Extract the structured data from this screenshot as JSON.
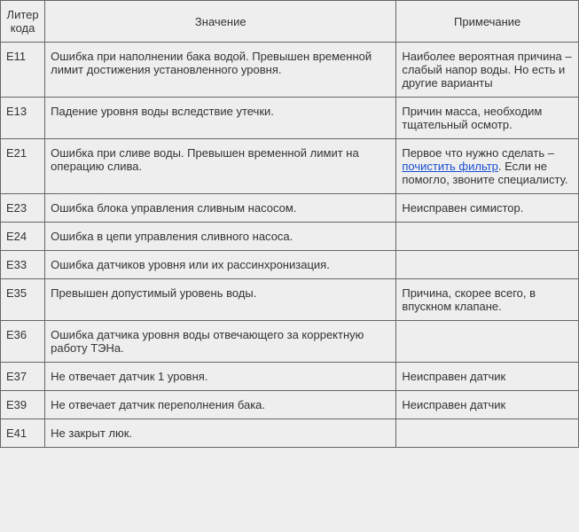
{
  "table": {
    "headers": {
      "code": "Литер кода",
      "meaning": "Значение",
      "note": "Примечание"
    },
    "rows": [
      {
        "code": "E11",
        "meaning": "Ошибка при наполнении бака водой. Превышен временной лимит достижения установленного уровня.",
        "note": "Наиболее вероятная причина – слабый напор воды. Но есть и другие варианты"
      },
      {
        "code": "E13",
        "meaning": "Падение уровня воды вследствие утечки.",
        "note": "Причин масса, необходим тщательный осмотр."
      },
      {
        "code": "E21",
        "meaning": "Ошибка при сливе воды. Превышен временной лимит на операцию слива.",
        "note_prefix": "Первое что нужно сделать – ",
        "note_link": "почистить фильтр",
        "note_suffix": ". Если не помогло, звоните специалисту."
      },
      {
        "code": "E23",
        "meaning": "Ошибка блока управления сливным насосом.",
        "note": "Неисправен симистор."
      },
      {
        "code": "E24",
        "meaning": "Ошибка в цепи управления сливного насоса.",
        "note": ""
      },
      {
        "code": "E33",
        "meaning": "Ошибка датчиков уровня или их рассинхронизация.",
        "note": ""
      },
      {
        "code": "E35",
        "meaning": "Превышен допустимый уровень воды.",
        "note": "Причина, скорее всего, в впускном клапане."
      },
      {
        "code": "E36",
        "meaning": "Ошибка датчика уровня воды отвечающего за корректную работу ТЭНа.",
        "note": ""
      },
      {
        "code": "E37",
        "meaning": "Не отвечает датчик 1 уровня.",
        "note": "Неисправен датчик"
      },
      {
        "code": "E39",
        "meaning": "Не отвечает датчик переполнения бака.",
        "note": "Неисправен датчик"
      },
      {
        "code": "E41",
        "meaning": "Не закрыт люк.",
        "note": ""
      }
    ]
  },
  "styling": {
    "background_color": "#eeeeee",
    "border_color": "#666666",
    "text_color": "#333333",
    "link_color": "#1a4fd1",
    "font_family": "Arial, Helvetica, sans-serif",
    "font_size": 13,
    "cell_padding": 8,
    "col_widths": {
      "code": 50,
      "meaning": 395,
      "note": 205
    }
  }
}
